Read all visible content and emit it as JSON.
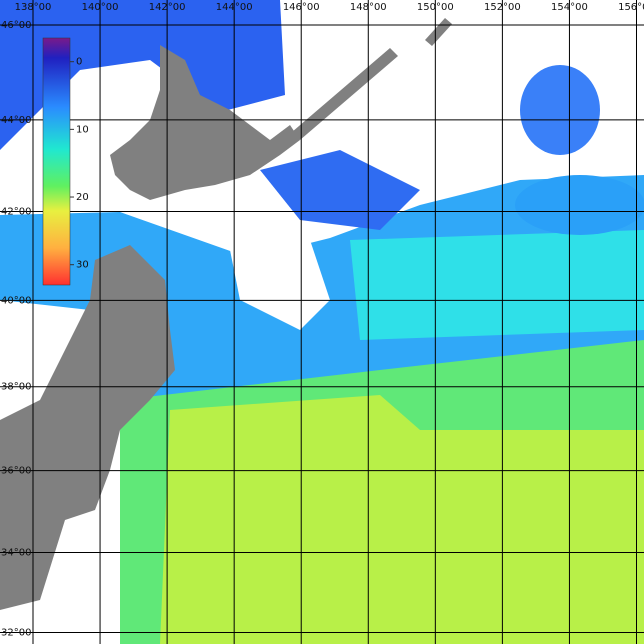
{
  "lon_lines": [
    {
      "value": 138,
      "label": "138°00"
    },
    {
      "value": 140,
      "label": "140°00"
    },
    {
      "value": 142,
      "label": "142°00"
    },
    {
      "value": 144,
      "label": "144°00"
    },
    {
      "value": 146,
      "label": "146°00"
    },
    {
      "value": 148,
      "label": "148°00"
    },
    {
      "value": 150,
      "label": "150°00"
    },
    {
      "value": 152,
      "label": "152°00"
    },
    {
      "value": 154,
      "label": "154°00"
    },
    {
      "value": 156,
      "label": "156°00"
    }
  ],
  "lat_lines": [
    {
      "value": 46,
      "label": "46°00"
    },
    {
      "value": 44,
      "label": "44°00"
    },
    {
      "value": 42,
      "label": "42°00"
    },
    {
      "value": 40,
      "label": "40°00"
    },
    {
      "value": 38,
      "label": "38°00"
    },
    {
      "value": 36,
      "label": "36°00"
    },
    {
      "value": 34,
      "label": "34°00"
    },
    {
      "value": 32,
      "label": "32°00"
    }
  ],
  "colorbar": {
    "lim": [
      -3.5,
      33
    ],
    "ticks": [
      0,
      10,
      20,
      30
    ]
  }
}
